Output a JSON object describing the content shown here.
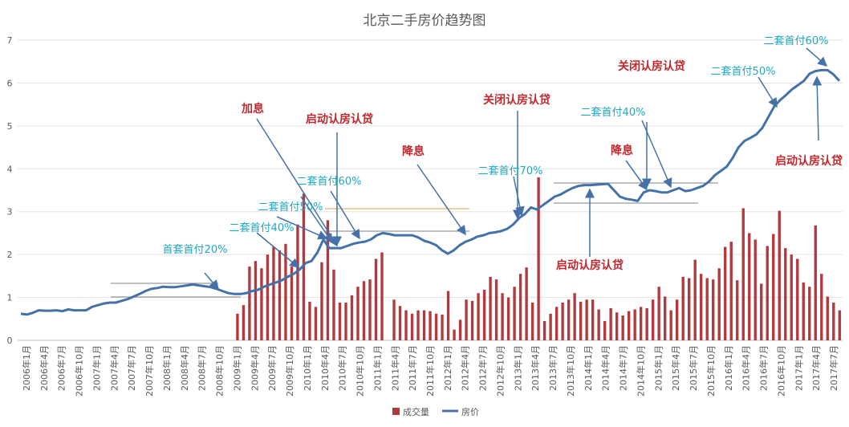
{
  "chart_data": {
    "type": "bar+line",
    "title": "北京二手房价趋势图",
    "ylim": [
      0,
      7
    ],
    "y_ticks": [
      "0",
      "1",
      "2",
      "3",
      "4",
      "5",
      "6",
      "7"
    ],
    "grid": true,
    "legend_position": "bottom",
    "x_labels": [
      "2006年1月",
      "2006年4月",
      "2006年7月",
      "2006年10月",
      "2007年1月",
      "2007年4月",
      "2007年7月",
      "2007年10月",
      "2008年1月",
      "2008年4月",
      "2008年7月",
      "2008年10月",
      "2009年1月",
      "2009年4月",
      "2009年7月",
      "2009年10月",
      "2010年1月",
      "2010年4月",
      "2010年7月",
      "2010年10月",
      "2011年1月",
      "2011年4月",
      "2011年7月",
      "2011年10月",
      "2012年1月",
      "2012年4月",
      "2012年7月",
      "2012年10月",
      "2013年1月",
      "2013年4月",
      "2013年7月",
      "2013年10月",
      "2014年1月",
      "2014年4月",
      "2014年7月",
      "2014年10月",
      "2015年1月",
      "2015年4月",
      "2015年7月",
      "2015年10月",
      "2016年1月",
      "2016年4月",
      "2016年7月",
      "2016年10月",
      "2017年1月",
      "2017年4月",
      "2017年7月"
    ],
    "series": [
      {
        "name": "成交量",
        "kind": "bar",
        "color": "#b23a3e",
        "values": [
          0,
          0,
          0,
          0,
          0,
          0,
          0,
          0,
          0,
          0,
          0,
          0,
          0,
          0,
          0,
          0,
          0,
          0,
          0,
          0,
          0,
          0,
          0,
          0,
          0,
          0,
          0,
          0,
          0,
          0,
          0,
          0,
          0,
          0,
          0,
          0,
          0.62,
          0.82,
          1.72,
          1.85,
          1.68,
          2.0,
          2.18,
          2.1,
          2.25,
          1.72,
          2.7,
          3.42,
          0.9,
          0.78,
          1.82,
          2.8,
          1.65,
          0.88,
          0.88,
          1.05,
          1.25,
          1.38,
          1.42,
          1.9,
          2.05,
          0,
          0.95,
          0.8,
          0.7,
          0.62,
          0.7,
          0.7,
          0.68,
          0.62,
          0.6,
          1.15,
          0.25,
          0.48,
          0.95,
          0.92,
          1.1,
          1.18,
          1.48,
          1.42,
          1.1,
          1.0,
          1.25,
          1.55,
          1.7,
          0.88,
          3.8,
          0.45,
          0.62,
          0.78,
          0.88,
          0.95,
          1.1,
          0.9,
          0.95,
          0.95,
          0.72,
          0.45,
          0.75,
          0.65,
          0.58,
          0.68,
          0.72,
          0.78,
          0.75,
          0.95,
          1.25,
          1.02,
          0.7,
          0.95,
          1.48,
          1.45,
          1.88,
          1.55,
          1.45,
          1.42,
          1.68,
          2.18,
          2.3,
          1.4,
          3.08,
          2.5,
          2.35,
          1.32,
          2.2,
          2.48,
          3.02,
          2.15,
          2.0,
          1.9,
          1.35,
          1.25,
          2.68,
          1.55,
          1.02,
          0.88,
          0.7
        ]
      },
      {
        "name": "房价",
        "kind": "line",
        "color": "#4472a8",
        "values": [
          0.62,
          0.6,
          0.64,
          0.7,
          0.69,
          0.69,
          0.7,
          0.68,
          0.72,
          0.7,
          0.7,
          0.7,
          0.78,
          0.82,
          0.86,
          0.88,
          0.88,
          0.92,
          0.96,
          1.02,
          1.08,
          1.15,
          1.2,
          1.22,
          1.25,
          1.24,
          1.24,
          1.26,
          1.28,
          1.3,
          1.28,
          1.26,
          1.24,
          1.2,
          1.15,
          1.1,
          1.08,
          1.08,
          1.1,
          1.15,
          1.18,
          1.25,
          1.3,
          1.35,
          1.4,
          1.48,
          1.55,
          1.65,
          1.8,
          1.85,
          2.05,
          2.35,
          2.15,
          2.15,
          2.15,
          2.2,
          2.25,
          2.28,
          2.3,
          2.35,
          2.45,
          2.5,
          2.48,
          2.45,
          2.45,
          2.45,
          2.45,
          2.4,
          2.32,
          2.28,
          2.22,
          2.1,
          2.02,
          2.1,
          2.22,
          2.3,
          2.35,
          2.42,
          2.45,
          2.5,
          2.52,
          2.55,
          2.6,
          2.7,
          2.85,
          2.95,
          3.1,
          3.05,
          3.15,
          3.25,
          3.35,
          3.4,
          3.48,
          3.55,
          3.6,
          3.62,
          3.62,
          3.63,
          3.64,
          3.65,
          3.5,
          3.35,
          3.3,
          3.28,
          3.25,
          3.45,
          3.5,
          3.48,
          3.45,
          3.45,
          3.5,
          3.55,
          3.48,
          3.5,
          3.55,
          3.6,
          3.7,
          3.85,
          3.95,
          4.05,
          4.25,
          4.5,
          4.65,
          4.72,
          4.8,
          4.95,
          5.2,
          5.45,
          5.6,
          5.72,
          5.85,
          5.95,
          6.05,
          6.22,
          6.28,
          6.3,
          6.3,
          6.2,
          6.05
        ]
      }
    ],
    "annotations": {
      "red": [
        "加息",
        "启动认房认贷",
        "降息",
        "关闭认房认贷",
        "降息",
        "关闭认房认贷",
        "启动认房认贷",
        "启动认房认贷"
      ],
      "cyan": [
        "首套首付20%",
        "二套首付40%",
        "二套首付50%",
        "二套首付60%",
        "二套首付70%",
        "二套首付40%",
        "二套首付50%",
        "二套首付60%"
      ]
    }
  },
  "legend": [
    {
      "label": "成交量",
      "color": "#b23a3e"
    },
    {
      "label": "房价",
      "color": "#4472a8"
    }
  ]
}
